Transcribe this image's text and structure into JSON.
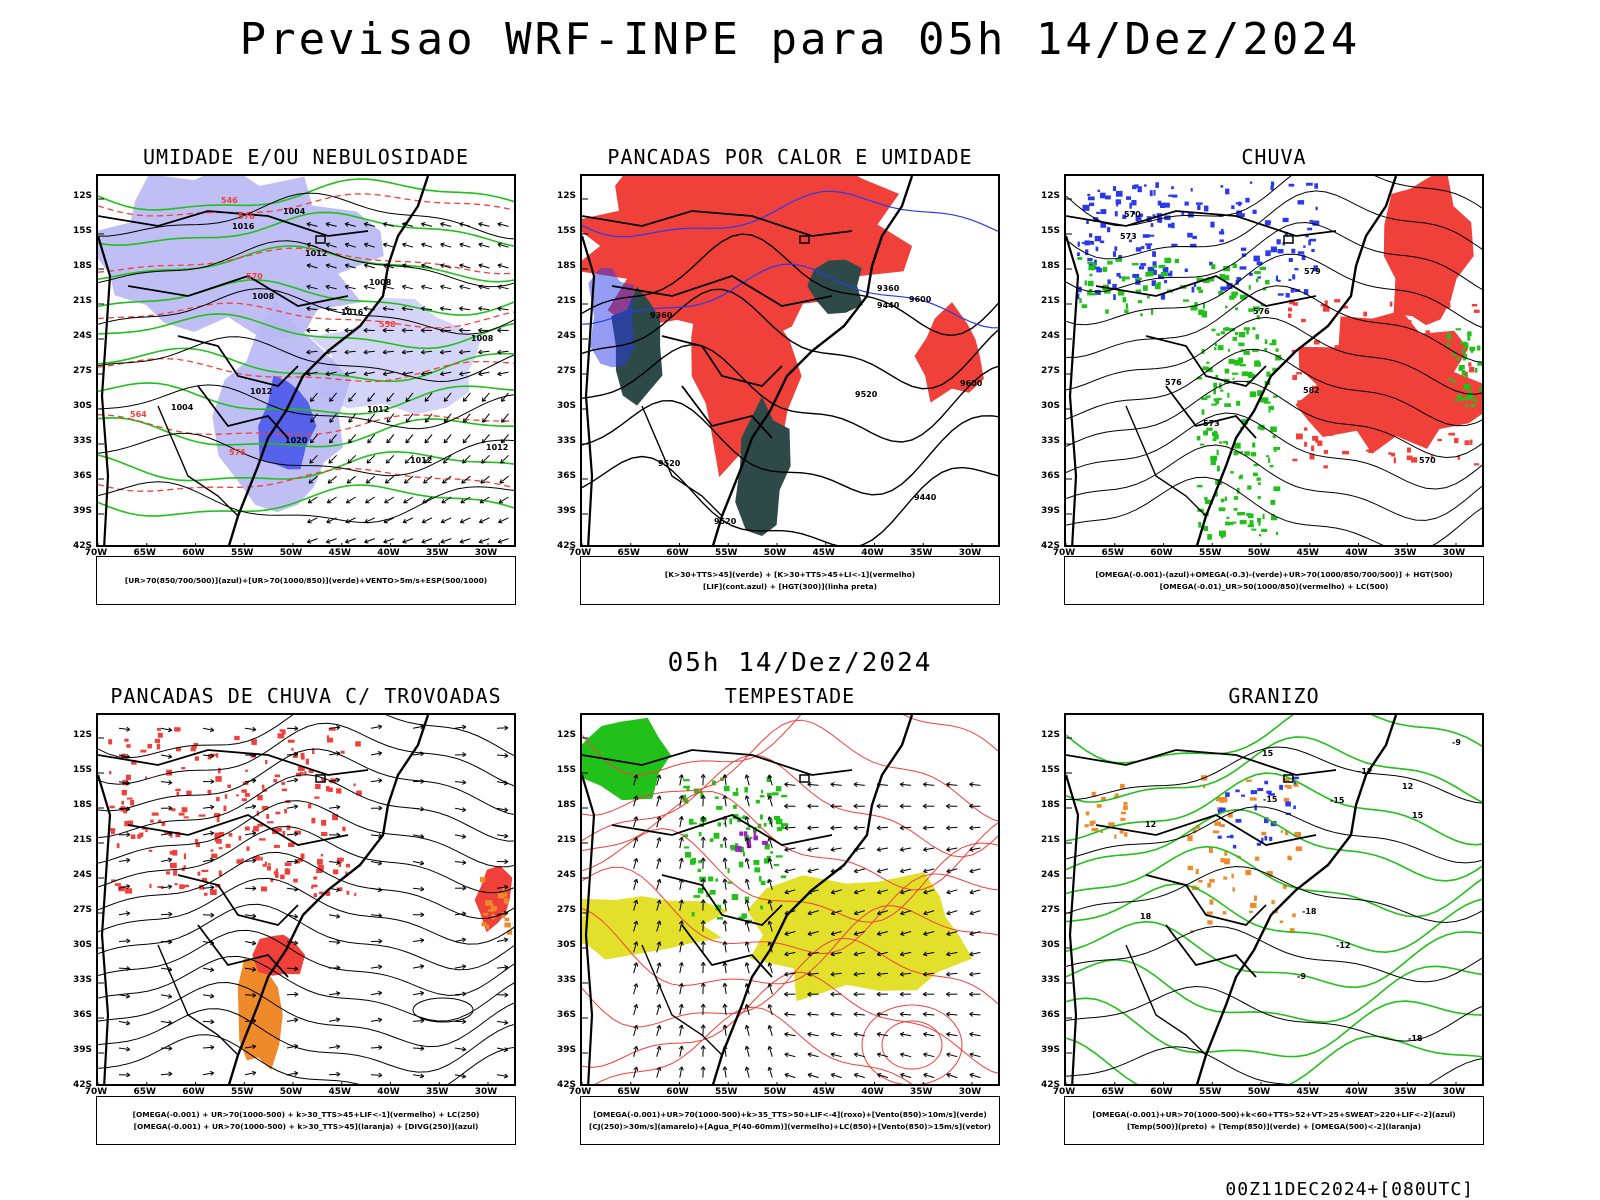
{
  "main_title": "Previsao WRF-INPE  para 05h 14/Dez/2024",
  "subtitle": "05h 14/Dez/2024",
  "footer_stamp": "00Z11DEC2024+[080UTC]",
  "lat_labels": [
    "12S",
    "15S",
    "18S",
    "21S",
    "24S",
    "27S",
    "30S",
    "33S",
    "36S",
    "39S",
    "42S"
  ],
  "lon_labels": [
    "70W",
    "65W",
    "60W",
    "55W",
    "50W",
    "45W",
    "40W",
    "35W",
    "30W"
  ],
  "colors": {
    "red": "#f0403a",
    "green": "#22c01a",
    "blue": "#2a3ae8",
    "lightblue": "#b8b8f4",
    "orange": "#ee8a2a",
    "yellow": "#e2e02a",
    "darkteal": "#2e4a48",
    "purple": "#a020c0"
  },
  "panels": [
    {
      "title": "UMIDADE E/OU NEBULOSIDADE",
      "legend_lines": [
        "[UR>70(850/700/500)](azul)+[UR>70(1000/850)](verde)+VENTO>5m/s+ESP(500/1000)"
      ],
      "contour_labels": [
        "1012",
        "1012",
        "1012",
        "1008",
        "1004",
        "1016",
        "1008",
        "1016",
        "1020",
        "1012",
        "1004",
        "1008",
        "1012",
        "576",
        "576",
        "570",
        "564",
        "558",
        "546"
      ]
    },
    {
      "title": "PANCADAS POR CALOR E UMIDADE",
      "legend_lines": [
        "[K>30+TTS>45](verde) + [K>30+TTS>45+LI<-1](vermelho)",
        "[LIF](cont.azul) + [HGT(300)](linha preta)"
      ],
      "contour_labels": [
        "9600",
        "9600",
        "9520",
        "9520",
        "9520",
        "9440",
        "9440",
        "9360",
        "9360"
      ]
    },
    {
      "title": "CHUVA",
      "legend_lines": [
        "[OMEGA(-0.001)-(azul)+OMEGA(-0.3)-(verde)+UR>70(1000/850/700/500)] + HGT(500)",
        "[OMEGA(-0.01)_UR>50(1000/850)(vermelho) + LC(500)"
      ],
      "contour_labels": [
        "576",
        "579",
        "576",
        "573",
        "570",
        "573",
        "570",
        "582"
      ]
    },
    {
      "title": "PANCADAS DE CHUVA C/ TROVOADAS",
      "legend_lines": [
        "[OMEGA(-0.001) + UR>70(1000-500) + k>30_TTS>45+LIF<-1](vermelho) + LC(250)",
        "[OMEGA(-0.001) + UR>70(1000-500) + k>30_TTS>45](laranja) + [DIVG(250)](azul)"
      ],
      "contour_labels": []
    },
    {
      "title": "TEMPESTADE",
      "legend_lines": [
        "[OMEGA(-0.001)+UR>70(1000-500)+k>35_TTS>50+LIF<-4](roxo)+[Vento(850)>10m/s](verde)",
        "[CJ(250)>30m/s](amarelo)+[Agua_P(40-60mm)](vermelho)+LC(850)+[Vento(850)>15m/s](vetor)"
      ],
      "contour_labels": []
    },
    {
      "title": "GRANIZO",
      "legend_lines": [
        "[OMEGA(-0.001)+UR>70(1000-500)+k<60+TTS>52+VT>25+SWEAT>220+LIF<-2](azul)",
        "[Temp(500)](preto) + [Temp(850)](verde) + [OMEGA(500)<-2](laranja)"
      ],
      "contour_labels": [
        "-9",
        "-9",
        "-12",
        "-12",
        "-15",
        "-15",
        "-18",
        "-18",
        "12",
        "12",
        "15",
        "15",
        "18"
      ]
    }
  ]
}
